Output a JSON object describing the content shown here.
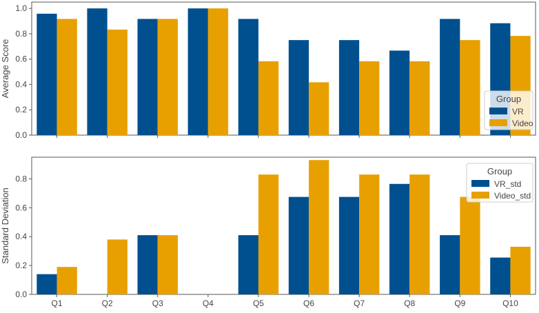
{
  "colors": {
    "vr": "#00508f",
    "video": "#e8a000",
    "axis": "#555555",
    "text": "#444444"
  },
  "chart_data": [
    {
      "type": "bar",
      "categories": [
        "Q1",
        "Q2",
        "Q3",
        "Q4",
        "Q5",
        "Q6",
        "Q7",
        "Q8",
        "Q9",
        "Q10"
      ],
      "ylabel": "Average Score",
      "xlabel": "",
      "ylim": [
        0,
        1.05
      ],
      "yticks": [
        "0.0",
        "0.2",
        "0.4",
        "0.6",
        "0.8",
        "1.0"
      ],
      "show_xticklabels": false,
      "legend": {
        "title": "Group",
        "position": "lower-right"
      },
      "series": [
        {
          "name": "VR",
          "color": "#00508f",
          "values": [
            0.958,
            1.0,
            0.917,
            1.0,
            0.917,
            0.75,
            0.75,
            0.667,
            0.917,
            0.883
          ]
        },
        {
          "name": "Video",
          "color": "#e8a000",
          "values": [
            0.917,
            0.833,
            0.917,
            1.0,
            0.583,
            0.417,
            0.583,
            0.583,
            0.75,
            0.783
          ]
        }
      ]
    },
    {
      "type": "bar",
      "categories": [
        "Q1",
        "Q2",
        "Q3",
        "Q4",
        "Q5",
        "Q6",
        "Q7",
        "Q8",
        "Q9",
        "Q10"
      ],
      "ylabel": "Standard Deviation",
      "xlabel": "",
      "ylim": [
        0,
        0.95
      ],
      "yticks": [
        "0.0",
        "0.2",
        "0.4",
        "0.6",
        "0.8"
      ],
      "show_xticklabels": true,
      "legend": {
        "title": "Group",
        "position": "upper-right"
      },
      "series": [
        {
          "name": "VR_std",
          "color": "#00508f",
          "values": [
            0.14,
            0.0,
            0.41,
            0.0,
            0.41,
            0.675,
            0.675,
            0.765,
            0.41,
            0.255
          ]
        },
        {
          "name": "Video_std",
          "color": "#e8a000",
          "values": [
            0.19,
            0.38,
            0.41,
            0.0,
            0.83,
            0.93,
            0.83,
            0.83,
            0.675,
            0.33
          ]
        }
      ]
    }
  ]
}
